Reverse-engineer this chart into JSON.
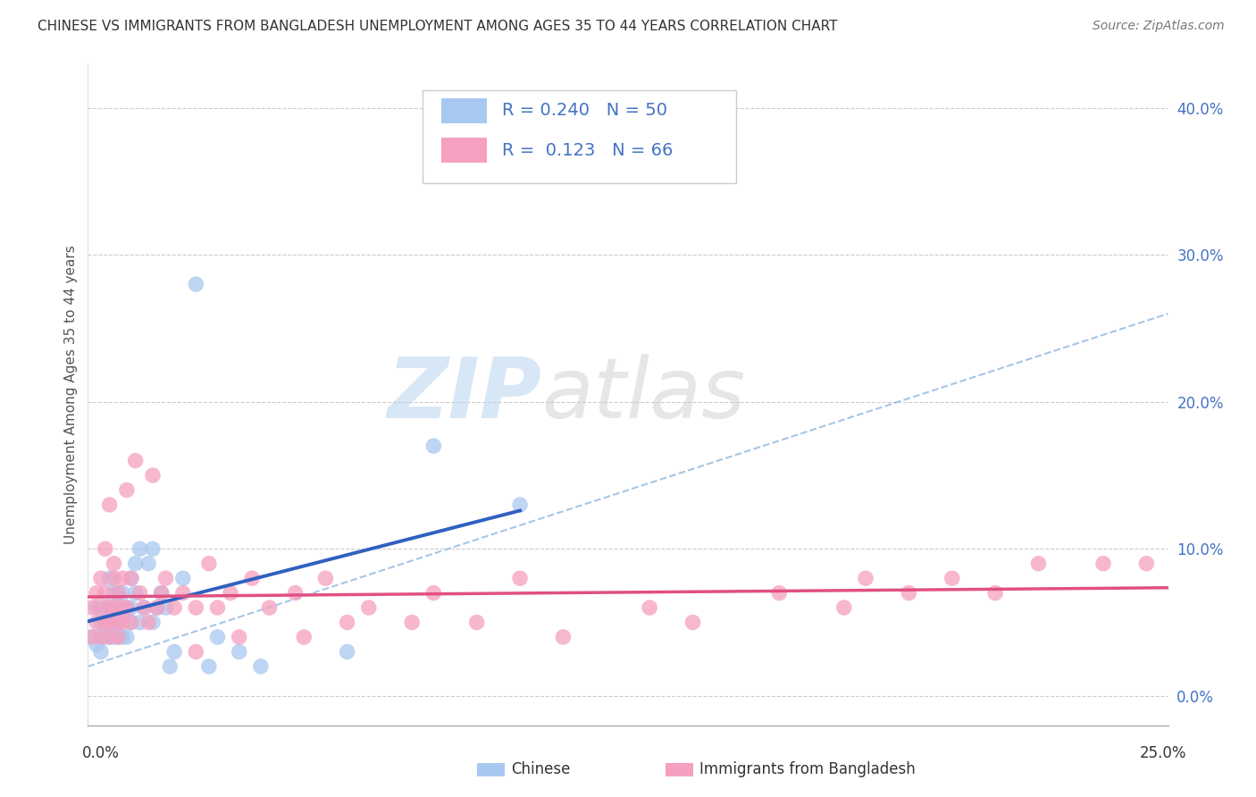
{
  "title": "CHINESE VS IMMIGRANTS FROM BANGLADESH UNEMPLOYMENT AMONG AGES 35 TO 44 YEARS CORRELATION CHART",
  "source": "Source: ZipAtlas.com",
  "ylabel": "Unemployment Among Ages 35 to 44 years",
  "yticks_right": [
    "0.0%",
    "10.0%",
    "20.0%",
    "30.0%",
    "40.0%"
  ],
  "yticks_right_vals": [
    0.0,
    0.1,
    0.2,
    0.3,
    0.4
  ],
  "xmin": 0.0,
  "xmax": 0.25,
  "ymin": -0.02,
  "ymax": 0.43,
  "legend_chinese_R": "0.240",
  "legend_chinese_N": "50",
  "legend_bangladesh_R": "0.123",
  "legend_bangladesh_N": "66",
  "chinese_color": "#a8c8f0",
  "bangladesh_color": "#f5a0c0",
  "chinese_line_color": "#3060c0",
  "bangladesh_line_color": "#e05080",
  "dashed_line_color": "#90b8e0",
  "watermark_zip": "ZIP",
  "watermark_atlas": "atlas",
  "chinese_x": [
    0.001,
    0.002,
    0.002,
    0.003,
    0.003,
    0.003,
    0.004,
    0.004,
    0.004,
    0.005,
    0.005,
    0.005,
    0.005,
    0.006,
    0.006,
    0.006,
    0.007,
    0.007,
    0.007,
    0.007,
    0.008,
    0.008,
    0.008,
    0.009,
    0.009,
    0.01,
    0.01,
    0.01,
    0.011,
    0.011,
    0.012,
    0.012,
    0.013,
    0.014,
    0.015,
    0.015,
    0.016,
    0.017,
    0.018,
    0.019,
    0.02,
    0.022,
    0.025,
    0.028,
    0.03,
    0.035,
    0.04,
    0.06,
    0.08,
    0.1
  ],
  "chinese_y": [
    0.04,
    0.035,
    0.06,
    0.04,
    0.05,
    0.03,
    0.04,
    0.05,
    0.06,
    0.04,
    0.05,
    0.06,
    0.08,
    0.05,
    0.07,
    0.04,
    0.05,
    0.07,
    0.04,
    0.06,
    0.04,
    0.055,
    0.07,
    0.04,
    0.06,
    0.08,
    0.05,
    0.06,
    0.07,
    0.09,
    0.05,
    0.1,
    0.06,
    0.09,
    0.05,
    0.1,
    0.06,
    0.07,
    0.06,
    0.02,
    0.03,
    0.08,
    0.28,
    0.02,
    0.04,
    0.03,
    0.02,
    0.03,
    0.17,
    0.13
  ],
  "bangladesh_x": [
    0.001,
    0.001,
    0.002,
    0.002,
    0.003,
    0.003,
    0.003,
    0.004,
    0.004,
    0.004,
    0.005,
    0.005,
    0.005,
    0.005,
    0.006,
    0.006,
    0.006,
    0.007,
    0.007,
    0.007,
    0.008,
    0.008,
    0.008,
    0.009,
    0.009,
    0.01,
    0.01,
    0.011,
    0.012,
    0.013,
    0.014,
    0.015,
    0.016,
    0.017,
    0.018,
    0.02,
    0.022,
    0.025,
    0.028,
    0.03,
    0.033,
    0.038,
    0.042,
    0.048,
    0.055,
    0.065,
    0.08,
    0.1,
    0.13,
    0.16,
    0.175,
    0.19,
    0.2,
    0.21,
    0.22,
    0.235,
    0.245,
    0.14,
    0.09,
    0.05,
    0.035,
    0.025,
    0.075,
    0.11,
    0.18,
    0.06
  ],
  "bangladesh_y": [
    0.04,
    0.06,
    0.05,
    0.07,
    0.04,
    0.06,
    0.08,
    0.05,
    0.07,
    0.1,
    0.04,
    0.06,
    0.13,
    0.05,
    0.08,
    0.06,
    0.09,
    0.05,
    0.07,
    0.04,
    0.06,
    0.08,
    0.05,
    0.14,
    0.06,
    0.08,
    0.05,
    0.16,
    0.07,
    0.06,
    0.05,
    0.15,
    0.06,
    0.07,
    0.08,
    0.06,
    0.07,
    0.06,
    0.09,
    0.06,
    0.07,
    0.08,
    0.06,
    0.07,
    0.08,
    0.06,
    0.07,
    0.08,
    0.06,
    0.07,
    0.06,
    0.07,
    0.08,
    0.07,
    0.09,
    0.09,
    0.09,
    0.05,
    0.05,
    0.04,
    0.04,
    0.03,
    0.05,
    0.04,
    0.08,
    0.05
  ]
}
